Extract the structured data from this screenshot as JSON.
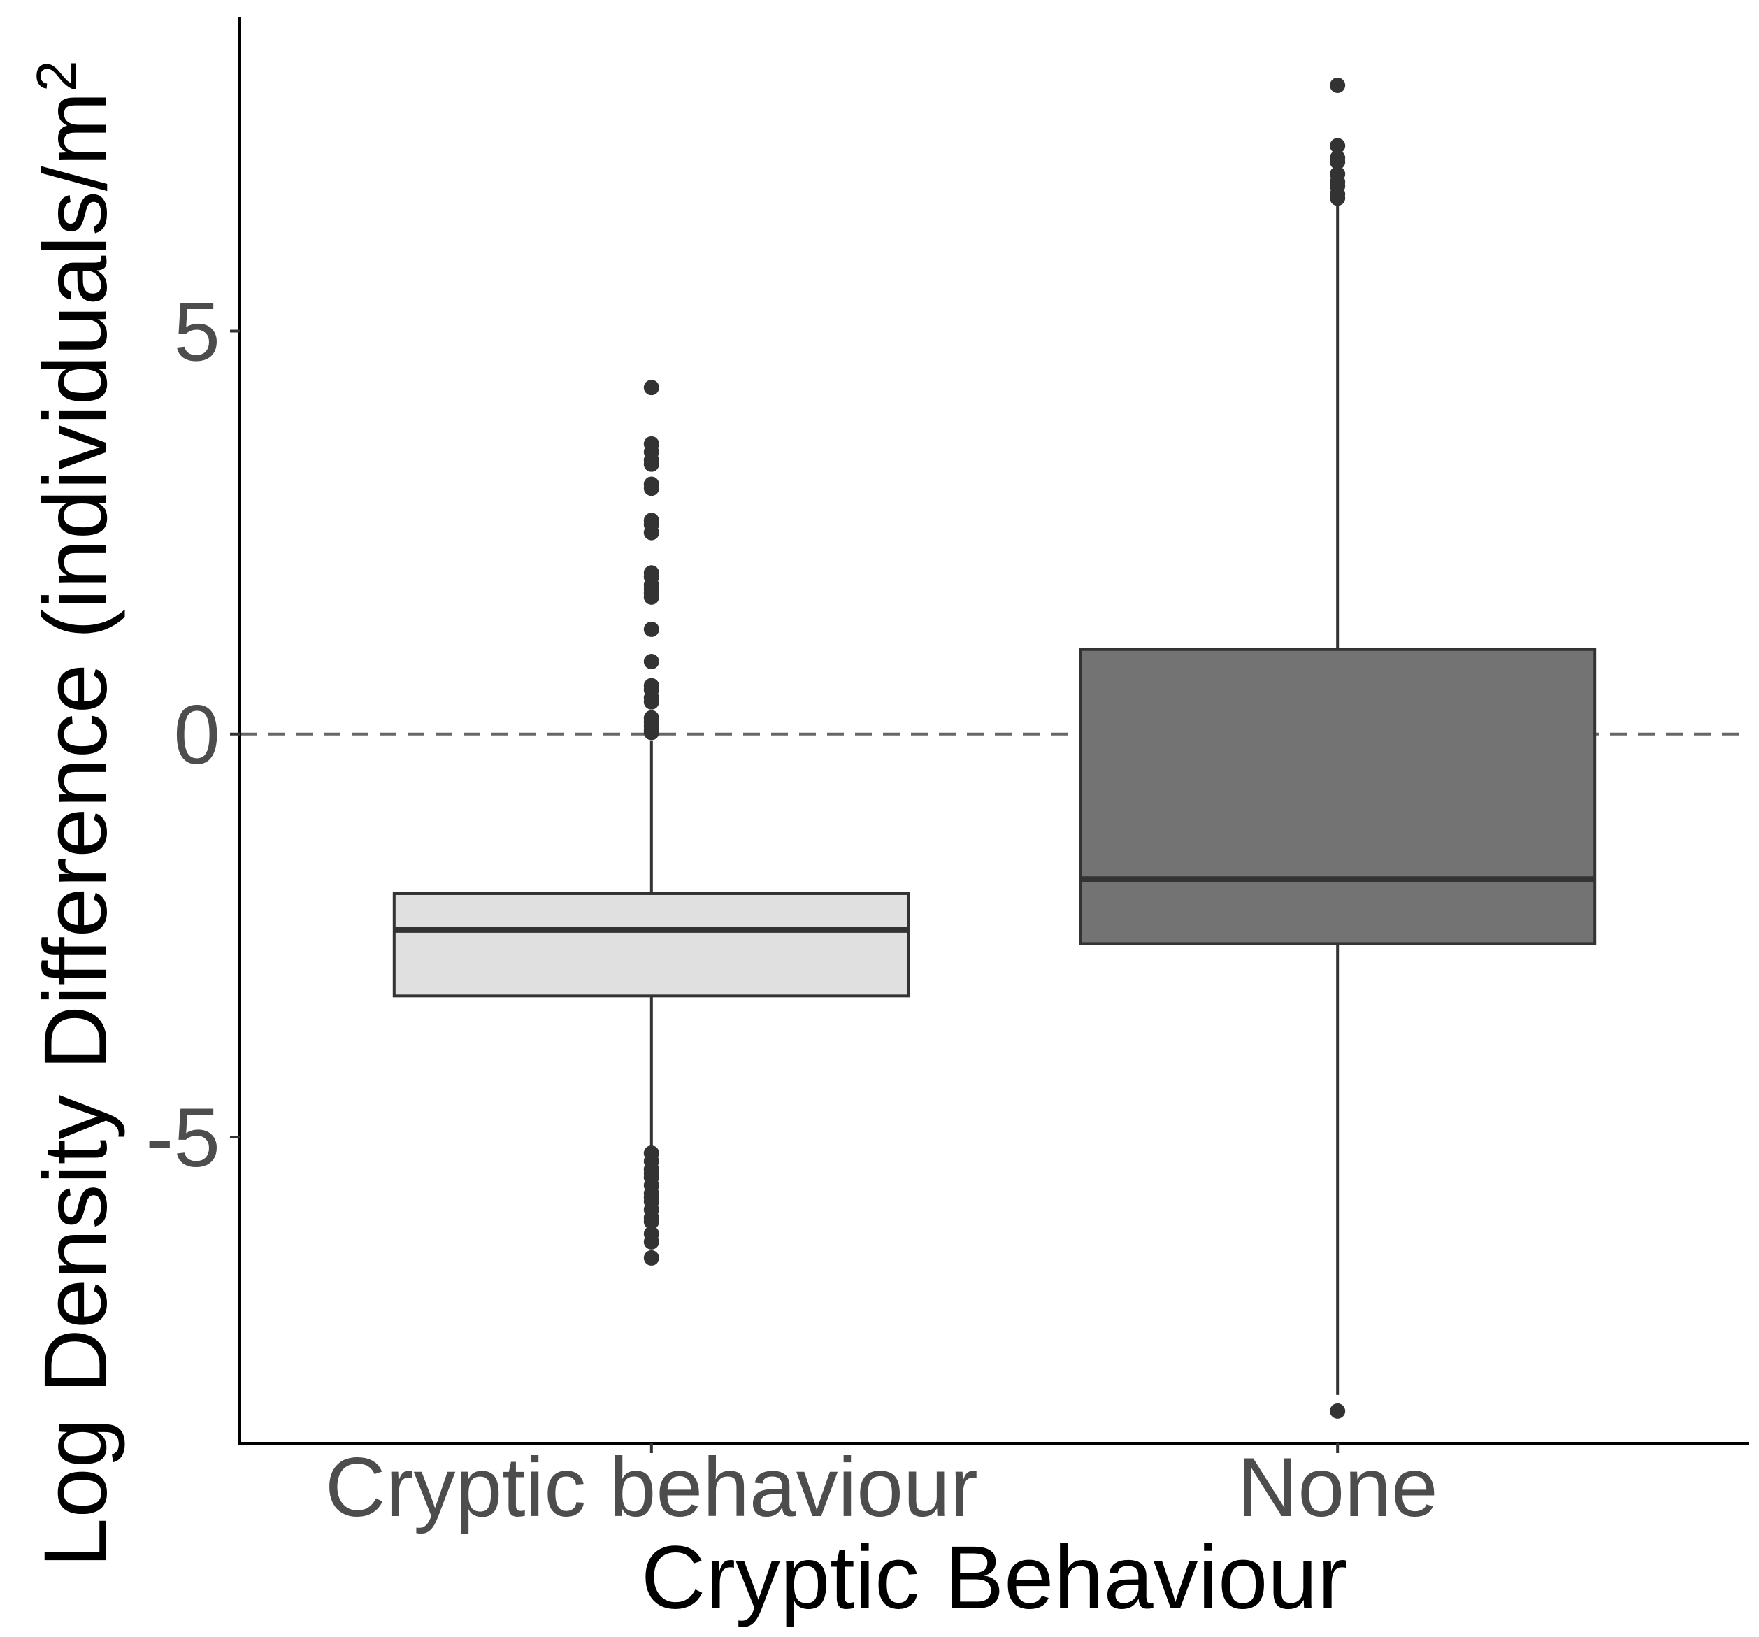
{
  "chart_data": {
    "type": "box",
    "xlabel": "Cryptic Behaviour",
    "ylabel": "Log Density Difference (individuals/m²)",
    "ylabel_parts": {
      "main": "Log Density Difference ",
      "open": "(",
      "inner": "individuals",
      "slash": "/",
      "unit": "m",
      "sup": "2"
    },
    "categories": [
      "Cryptic behaviour",
      "None"
    ],
    "ylim": [
      -8.8,
      8.9
    ],
    "yticks": [
      -5,
      0,
      5
    ],
    "yticklabels": [
      "-5",
      "0",
      "5"
    ],
    "reference_line": {
      "y": 0,
      "style": "dashed"
    },
    "boxes": [
      {
        "category": "Cryptic behaviour",
        "fill": "#e0e0e0",
        "q1": -3.25,
        "median": -2.43,
        "q3": -1.98,
        "whisker_low": -5.15,
        "whisker_high": -0.08,
        "outliers": [
          4.3,
          3.6,
          3.5,
          3.4,
          3.35,
          3.1,
          3.05,
          2.65,
          2.6,
          2.5,
          2.0,
          1.95,
          1.85,
          1.8,
          1.75,
          1.7,
          1.3,
          0.9,
          0.6,
          0.55,
          0.45,
          0.4,
          0.2,
          0.15,
          0.1,
          0.05,
          0.02,
          -5.2,
          -5.3,
          -5.4,
          -5.45,
          -5.5,
          -5.6,
          -5.7,
          -5.75,
          -5.8,
          -5.9,
          -6.0,
          -6.05,
          -6.2,
          -6.3,
          -6.5
        ]
      },
      {
        "category": "None",
        "fill": "#737373",
        "q1": -2.6,
        "median": -1.8,
        "q3": 1.05,
        "whisker_low": -8.2,
        "whisker_high": 6.6,
        "outliers": [
          8.05,
          7.3,
          7.15,
          7.1,
          6.95,
          6.85,
          6.8,
          6.7,
          6.65,
          -8.4
        ]
      }
    ],
    "colors": {
      "outlier": "#333333",
      "box_stroke": "#333333",
      "refline": "#666666"
    }
  }
}
